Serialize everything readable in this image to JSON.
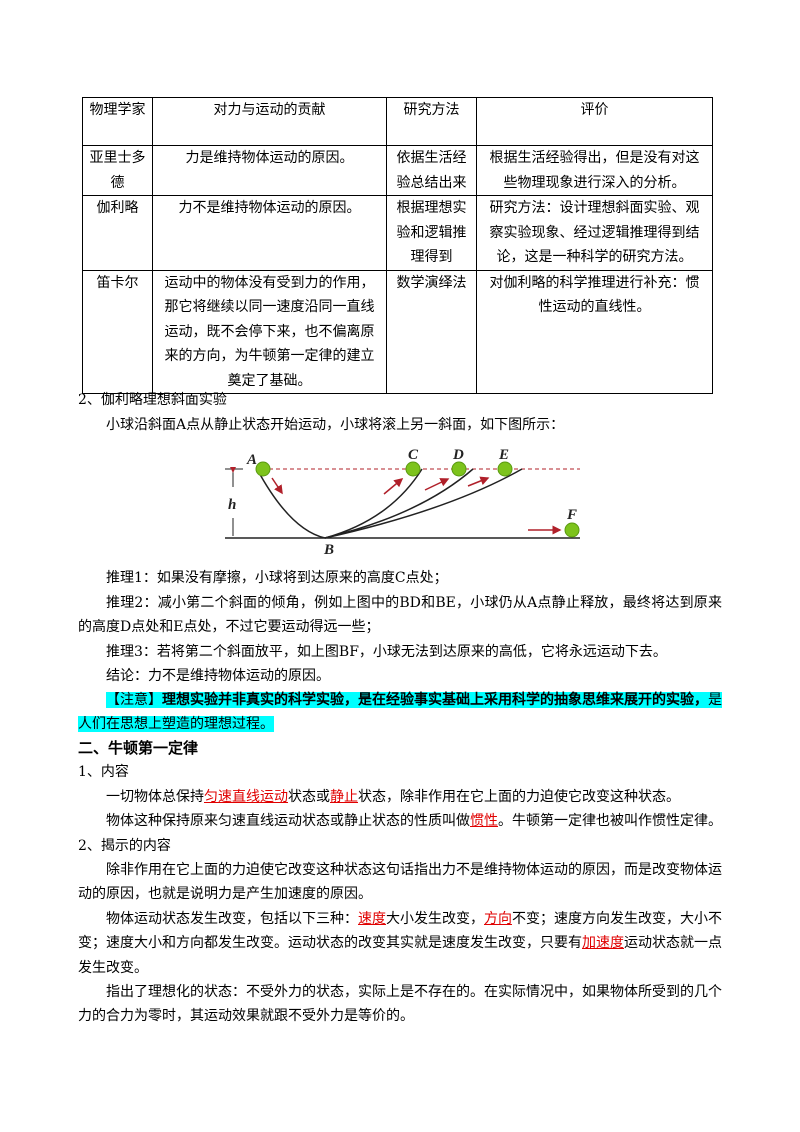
{
  "table": {
    "headers": [
      "物理学家",
      "对力与运动的贡献",
      "研究方法",
      "评价"
    ],
    "rows": [
      [
        "亚里士多德",
        "力是维持物体运动的原因。",
        "依据生活经验总结出来",
        "根据生活经验得出，但是没有对这些物理现象进行深入的分析。"
      ],
      [
        "伽利略",
        "力不是维持物体运动的原因。",
        "根据理想实验和逻辑推理得到",
        "研究方法：设计理想斜面实验、观察实验现象、经过逻辑推理得到结论，这是一种科学的研究方法。"
      ],
      [
        "笛卡尔",
        "运动中的物体没有受到力的作用，那它将继续以同一速度沿同一直线运动，既不会停下来，也不偏离原来的方向，为牛顿第一定律的建立奠定了基础。",
        "数学演绎法",
        "对伽利略的科学推理进行补充：惯性运动的直线性。"
      ]
    ]
  },
  "sec2_title": "2、伽利略理想斜面实验",
  "intro": "小球沿斜面A点从静止状态开始运动，小球将滚上另一斜面，如下图所示：",
  "diagram": {
    "labels": [
      "A",
      "B",
      "C",
      "D",
      "E",
      "F",
      "h"
    ],
    "ball_color": "#7dc31c",
    "arrow_color": "#b0202a"
  },
  "reason1": "推理1：如果没有摩擦，小球将到达原来的高度C点处；",
  "reason2": "推理2：减小第二个斜面的倾角，例如上图中的BD和BE，小球仍从A点静止释放，最终将达到原来的高度D点处和E点处，不过它要运动得远一些；",
  "reason3": "推理3：若将第二个斜面放平，如上图BF，小球无法到达原来的高低，它将永远运动下去。",
  "conclusion": "结论：力不是维持物体运动的原因。",
  "note": {
    "tag": "【注意】",
    "bold": "理想实验并非真实的科学实验，是在经验事实基础上采用科学的抽象思维来展开的实验，",
    "rest": "是人们在思想上塑造的理想过程。",
    "highlight_color": "#00ffff"
  },
  "heading2": "二、牛顿第一定律",
  "sub1": "1、内容",
  "p1": {
    "a": "一切物体总保持",
    "r1": "匀速直线运动",
    "b": "状态或",
    "r2": "静止",
    "c": "状态，除非作用在它上面的力迫使它改变这种状态。"
  },
  "p2": {
    "a": "物体这种保持原来匀速直线运动状态或静止状态的性质叫做",
    "r1": "惯性",
    "b": "。牛顿第一定律也被叫作惯性定律。"
  },
  "sub2": "2、揭示的内容",
  "p3": "除非作用在它上面的力迫使它改变这种状态这句话指出力不是维持物体运动的原因，而是改变物体运动的原因，也就是说明力是产生加速度的原因。",
  "p4": {
    "a": "物体运动状态发生改变，包括以下三种：",
    "r1": "速度",
    "b": "大小发生改变，",
    "r2": "方向",
    "c": "不变；速度方向发生改变，大小不变；速度大小和方向都发生改变。运动状态的改变其实就是速度发生改变，只要有",
    "r3": "加速度",
    "d": "运动状态就一点发生改变。"
  },
  "p5": "指出了理想化的状态：不受外力的状态，实际上是不存在的。在实际情况中，如果物体所受到的几个力的合力为零时，其运动效果就跟不受外力是等价的。"
}
